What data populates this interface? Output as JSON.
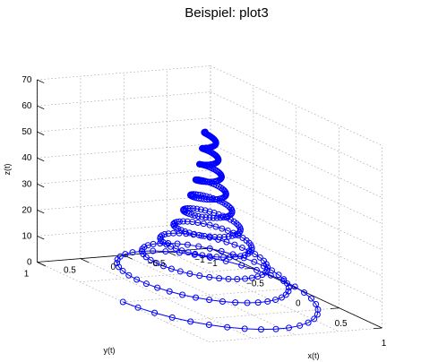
{
  "chart_data": {
    "type": "line3d",
    "title": "Beispiel: plot3",
    "xlabel": "x(t)",
    "ylabel": "y(t)",
    "zlabel": "z(t)",
    "xlim": [
      -1,
      1
    ],
    "ylim": [
      -1,
      1
    ],
    "zlim": [
      0,
      70
    ],
    "xticks": [
      -1,
      -0.5,
      0,
      0.5,
      1
    ],
    "yticks": [
      -1,
      -0.5,
      0,
      0.5,
      1
    ],
    "zticks": [
      0,
      10,
      20,
      30,
      40,
      50,
      60,
      70
    ],
    "xtick_labels": [
      "−1",
      "−0.5",
      "0",
      "0.5",
      "1"
    ],
    "ytick_labels": [
      "−1",
      "−0.5",
      "0",
      "0.5",
      "1"
    ],
    "ztick_labels": [
      "0",
      "10",
      "20",
      "30",
      "40",
      "50",
      "60",
      "70"
    ],
    "grid": true,
    "line_color": "#0000ff",
    "marker": "circle",
    "series": [
      {
        "function": "x = exp(-0.05 t) sin(t), y = exp(-0.05 t) cos(t), z = t",
        "t_start": 0,
        "t_end": 62.83,
        "t_step": 0.1571
      }
    ]
  }
}
